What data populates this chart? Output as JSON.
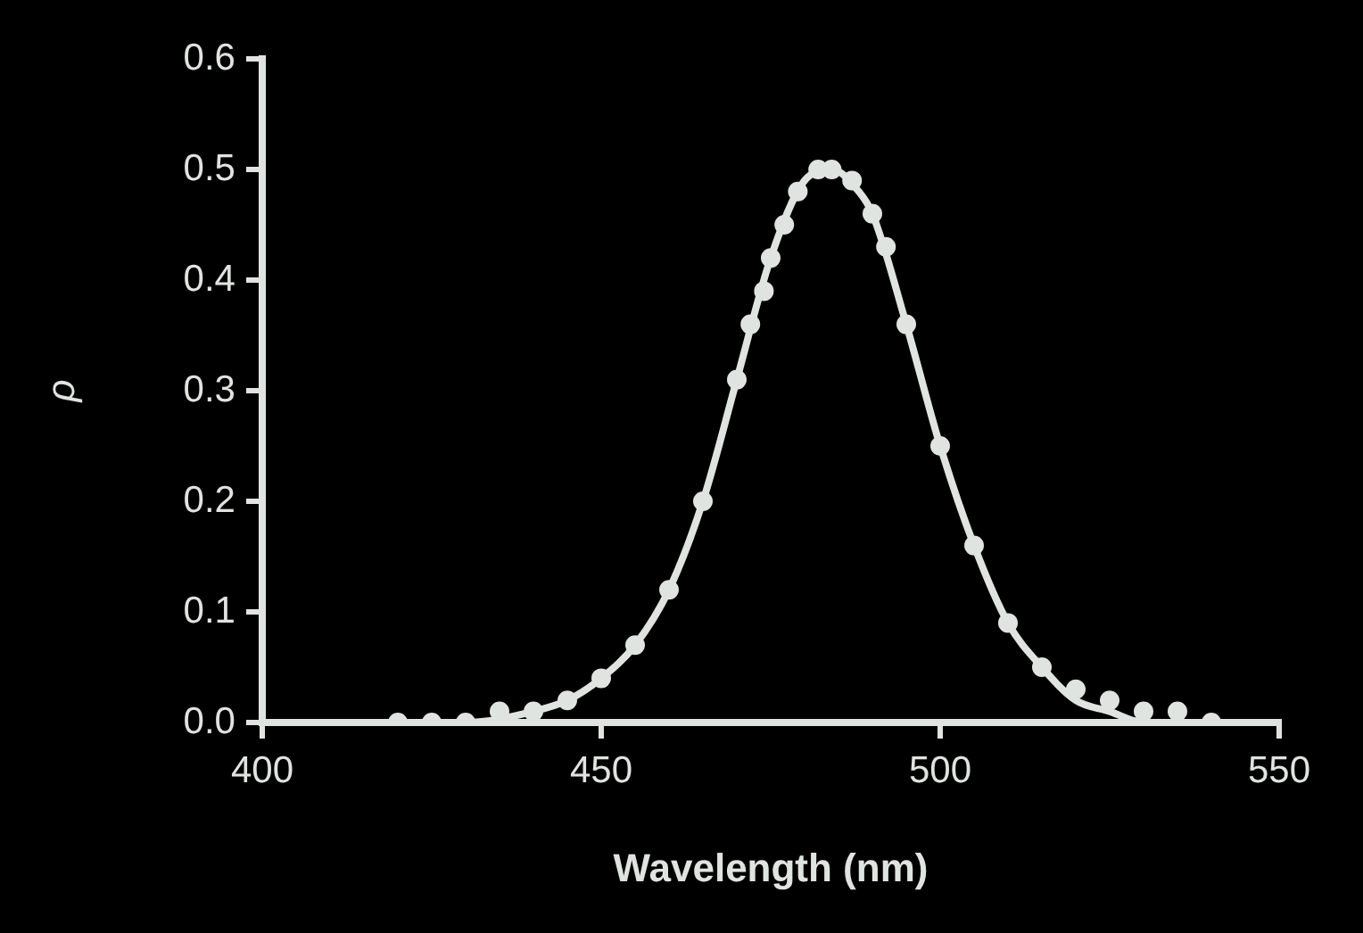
{
  "chart_data": {
    "type": "scatter",
    "xlabel": "Wavelength (nm)",
    "ylabel": "ρ",
    "xlim": [
      400,
      550
    ],
    "xticks": [
      400,
      450,
      500,
      550
    ],
    "ylim": [
      0,
      0.6
    ],
    "yticks": [
      {
        "value": 0,
        "label": "0.0"
      },
      {
        "value": 0.1,
        "label": "0.1"
      },
      {
        "value": 0.2,
        "label": "0.2"
      },
      {
        "value": 0.3,
        "label": "0.3"
      },
      {
        "value": 0.4,
        "label": "0.4"
      },
      {
        "value": 0.5,
        "label": "0.5"
      },
      {
        "value": 0.6,
        "label": "0.6"
      }
    ],
    "series": [
      {
        "type": "scatter",
        "marker": "circle",
        "color": "#e0e4e0",
        "x": [
          420,
          425,
          430,
          435,
          440,
          445,
          450,
          455,
          460,
          465,
          470,
          472,
          474,
          475,
          477,
          479,
          482,
          484,
          487,
          490,
          492,
          495,
          500,
          505,
          510,
          515,
          520,
          525,
          530,
          535,
          540
        ],
        "values": [
          0,
          0,
          0,
          0.01,
          0.01,
          0.02,
          0.04,
          0.07,
          0.12,
          0.2,
          0.31,
          0.36,
          0.39,
          0.42,
          0.45,
          0.48,
          0.5,
          0.5,
          0.49,
          0.46,
          0.43,
          0.36,
          0.25,
          0.16,
          0.09,
          0.05,
          0.03,
          0.02,
          0.01,
          0.01,
          0
        ]
      },
      {
        "type": "line",
        "marker": "none",
        "color": "#e0e4e0",
        "x": [
          420,
          430,
          440,
          445,
          450,
          455,
          460,
          465,
          470,
          475,
          480,
          484,
          488,
          490,
          495,
          500,
          505,
          510,
          515,
          520,
          525,
          530,
          540
        ],
        "values": [
          0,
          0,
          0.01,
          0.02,
          0.04,
          0.07,
          0.12,
          0.2,
          0.31,
          0.42,
          0.49,
          0.5,
          0.48,
          0.46,
          0.36,
          0.25,
          0.16,
          0.09,
          0.05,
          0.02,
          0.01,
          0,
          0
        ]
      }
    ]
  }
}
